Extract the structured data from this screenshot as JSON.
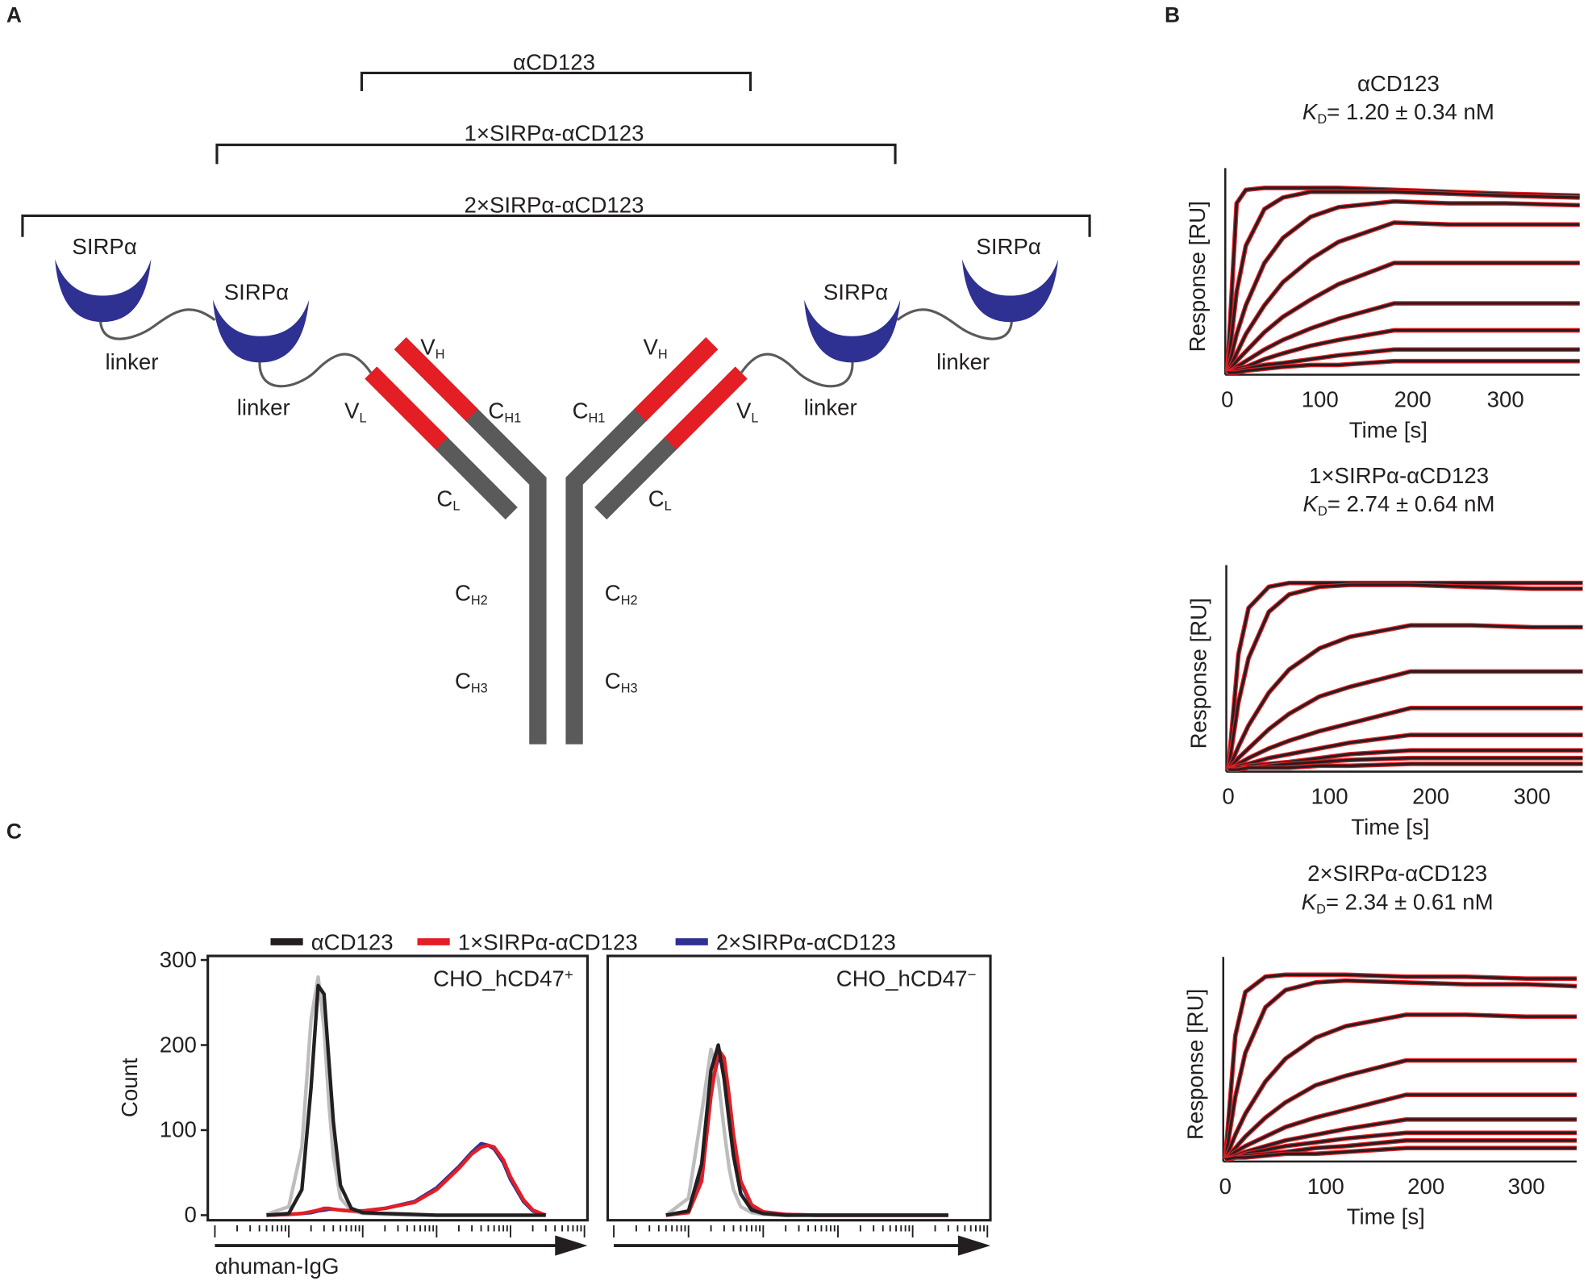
{
  "panel_labels": [
    "A",
    "B",
    "C"
  ],
  "diagram": {
    "brackets": [
      "αCD123",
      "1×SIRPα-αCD123",
      "2×SIRPα-αCD123"
    ],
    "domains": [
      "SIRPα",
      "SIRPα",
      "SIRPα",
      "SIRPα"
    ],
    "linkers": [
      "linker",
      "linker",
      "linker",
      "linker"
    ],
    "chains": [
      {
        "main": "V",
        "sub": "H"
      },
      {
        "main": "C",
        "sub": "H1"
      },
      {
        "main": "V",
        "sub": "L"
      },
      {
        "main": "C",
        "sub": "L"
      },
      {
        "main": "C",
        "sub": "H2"
      },
      {
        "main": "C",
        "sub": "H3"
      },
      {
        "main": "V",
        "sub": "H"
      },
      {
        "main": "C",
        "sub": "H1"
      },
      {
        "main": "V",
        "sub": "L"
      },
      {
        "main": "C",
        "sub": "L"
      },
      {
        "main": "C",
        "sub": "H2"
      },
      {
        "main": "C",
        "sub": "H3"
      }
    ]
  },
  "chart_data": [
    {
      "type": "line",
      "title": "αCD123",
      "kd": {
        "symbol": "K",
        "subscript": "D",
        "text": "= 1.20 ± 0.34 nM"
      },
      "xlabel": "Time [s]",
      "ylabel": "Response [RU]",
      "x": [
        0,
        10,
        20,
        40,
        60,
        90,
        120,
        180,
        240,
        300,
        380
      ],
      "xlim": [
        0,
        380
      ],
      "ylim": [
        0,
        100
      ],
      "xticks": [
        0,
        100,
        200,
        300
      ],
      "data_color": "#e31e24",
      "fit_color": "#231f20",
      "series": [
        {
          "values": [
            0,
            88,
            95,
            96,
            96,
            96,
            96,
            95,
            94,
            93,
            92
          ]
        },
        {
          "values": [
            0,
            42,
            66,
            85,
            91,
            94,
            94,
            94,
            93,
            92,
            91
          ]
        },
        {
          "values": [
            0,
            20,
            35,
            57,
            70,
            81,
            86,
            89,
            88,
            88,
            87
          ]
        },
        {
          "values": [
            0,
            10,
            20,
            35,
            47,
            59,
            68,
            78,
            77,
            77,
            77
          ]
        },
        {
          "values": [
            0,
            6,
            11,
            21,
            29,
            38,
            46,
            57,
            57,
            57,
            57
          ]
        },
        {
          "values": [
            0,
            3,
            6,
            12,
            17,
            23,
            28,
            36,
            36,
            36,
            36
          ]
        },
        {
          "values": [
            0,
            2,
            3,
            7,
            10,
            14,
            17,
            22,
            22,
            22,
            22
          ]
        },
        {
          "values": [
            0,
            1,
            2,
            4,
            5,
            7,
            9,
            12,
            12,
            12,
            12
          ]
        },
        {
          "values": [
            0,
            0,
            1,
            2,
            3,
            4,
            4,
            6,
            6,
            6,
            6
          ]
        }
      ]
    },
    {
      "type": "line",
      "title": "1×SIRPα-αCD123",
      "kd": {
        "symbol": "K",
        "subscript": "D",
        "text": "= 2.74 ± 0.64 nM"
      },
      "xlabel": "Time [s]",
      "ylabel": "Response [RU]",
      "x": [
        0,
        10,
        20,
        40,
        60,
        90,
        120,
        180,
        240,
        300,
        350
      ],
      "xlim": [
        0,
        350
      ],
      "ylim": [
        0,
        100
      ],
      "xticks": [
        0,
        100,
        200,
        300
      ],
      "data_color": "#e31e24",
      "fit_color": "#231f20",
      "series": [
        {
          "values": [
            0,
            60,
            84,
            95,
            97,
            97,
            97,
            97,
            97,
            97,
            97
          ]
        },
        {
          "values": [
            0,
            35,
            58,
            82,
            91,
            95,
            96,
            96,
            95,
            94,
            94
          ]
        },
        {
          "values": [
            0,
            12,
            23,
            40,
            52,
            63,
            69,
            75,
            75,
            74,
            74
          ]
        },
        {
          "values": [
            0,
            6,
            11,
            21,
            29,
            38,
            43,
            51,
            51,
            51,
            51
          ]
        },
        {
          "values": [
            0,
            3,
            6,
            11,
            15,
            20,
            24,
            32,
            32,
            32,
            32
          ]
        },
        {
          "values": [
            0,
            2,
            3,
            6,
            8,
            11,
            14,
            18,
            18,
            18,
            18
          ]
        },
        {
          "values": [
            0,
            1,
            2,
            3,
            4,
            6,
            8,
            10,
            10,
            10,
            10
          ]
        },
        {
          "values": [
            0,
            1,
            1,
            2,
            3,
            4,
            5,
            6,
            6,
            6,
            6
          ]
        },
        {
          "values": [
            0,
            0,
            1,
            1,
            1,
            2,
            2,
            3,
            3,
            3,
            3
          ]
        }
      ]
    },
    {
      "type": "line",
      "title": "2×SIRPα-αCD123",
      "kd": {
        "symbol": "K",
        "subscript": "D",
        "text": "= 2.34 ± 0.61 nM"
      },
      "xlabel": "Time [s]",
      "ylabel": "Response [RU]",
      "x": [
        0,
        10,
        20,
        40,
        60,
        90,
        120,
        180,
        240,
        300,
        350
      ],
      "xlim": [
        0,
        350
      ],
      "ylim": [
        0,
        100
      ],
      "xticks": [
        0,
        100,
        200,
        300
      ],
      "data_color": "#e31e24",
      "fit_color": "#231f20",
      "series": [
        {
          "values": [
            0,
            65,
            88,
            96,
            97,
            97,
            97,
            96,
            96,
            95,
            95
          ]
        },
        {
          "values": [
            0,
            33,
            56,
            80,
            89,
            93,
            94,
            93,
            92,
            92,
            91
          ]
        },
        {
          "values": [
            0,
            13,
            24,
            41,
            53,
            64,
            70,
            76,
            76,
            75,
            75
          ]
        },
        {
          "values": [
            0,
            6,
            12,
            22,
            30,
            39,
            44,
            52,
            52,
            52,
            52
          ]
        },
        {
          "values": [
            0,
            4,
            7,
            12,
            17,
            22,
            26,
            34,
            34,
            34,
            34
          ]
        },
        {
          "values": [
            0,
            2,
            4,
            7,
            10,
            13,
            16,
            21,
            21,
            21,
            21
          ]
        },
        {
          "values": [
            0,
            1,
            3,
            5,
            7,
            9,
            11,
            14,
            14,
            14,
            14
          ]
        },
        {
          "values": [
            0,
            1,
            2,
            3,
            4,
            6,
            7,
            10,
            10,
            10,
            10
          ]
        },
        {
          "values": [
            0,
            1,
            1,
            2,
            3,
            3,
            4,
            6,
            6,
            6,
            6
          ]
        }
      ]
    },
    {
      "type": "line",
      "log_x": true,
      "legend": "top",
      "annotation": "CHO_hCD47",
      "annotation_sup": "+",
      "xlabel": "αhuman-IgG",
      "ylabel": "Count",
      "x": [
        5,
        10,
        15,
        20,
        25,
        30,
        35,
        40,
        50,
        70,
        100,
        200,
        500,
        1000,
        2000,
        3000,
        4000,
        5000,
        6000,
        8000,
        10000,
        15000,
        20000,
        30000
      ],
      "xlim": [
        1,
        100000
      ],
      "ylim": [
        0,
        300
      ],
      "yticks": [
        0,
        100,
        200,
        300
      ],
      "xticks": [
        1,
        2,
        3,
        4,
        5,
        6,
        7,
        8,
        9,
        10,
        20,
        30,
        40,
        50,
        60,
        70,
        80,
        90,
        100,
        200,
        300,
        400,
        500,
        600,
        700,
        800,
        900,
        1000,
        2000,
        3000,
        4000,
        5000,
        6000,
        7000,
        8000,
        9000,
        10000,
        20000,
        30000,
        40000,
        50000,
        60000,
        70000,
        80000,
        90000,
        100000
      ],
      "series": [
        {
          "name": "αCD123",
          "color": "#231f20",
          "values": [
            0,
            2,
            30,
            150,
            270,
            260,
            180,
            110,
            35,
            8,
            3,
            2,
            1,
            0,
            0,
            0,
            0,
            0,
            0,
            0,
            0,
            0,
            0,
            0
          ]
        },
        {
          "name": "1×SIRPα-αCD123",
          "color": "#e31e24",
          "values": [
            0,
            1,
            2,
            4,
            6,
            8,
            8,
            7,
            6,
            5,
            5,
            8,
            15,
            30,
            55,
            72,
            80,
            82,
            80,
            65,
            45,
            18,
            6,
            0
          ]
        },
        {
          "name": "2×SIRPα-αCD123",
          "color": "#2e3192",
          "values": [
            0,
            1,
            2,
            3,
            5,
            6,
            7,
            7,
            6,
            5,
            5,
            8,
            16,
            32,
            57,
            74,
            84,
            82,
            78,
            62,
            42,
            16,
            5,
            0
          ]
        },
        {
          "color": "#bdbdbd",
          "values": [
            1,
            10,
            80,
            230,
            280,
            220,
            130,
            70,
            20,
            5,
            2,
            1,
            0,
            0,
            0,
            0,
            0,
            0,
            0,
            0,
            0,
            0,
            0,
            0
          ]
        }
      ]
    },
    {
      "type": "line",
      "log_x": true,
      "annotation": "CHO_hCD47",
      "annotation_sup": "−",
      "x": [
        5,
        10,
        15,
        20,
        25,
        30,
        35,
        40,
        50,
        70,
        100,
        200,
        500,
        1000,
        2000,
        3000,
        4000,
        5000,
        6000,
        8000,
        10000,
        15000,
        20000,
        30000
      ],
      "xlim": [
        1,
        100000
      ],
      "ylim": [
        0,
        300
      ],
      "xticks": [
        1,
        2,
        3,
        4,
        5,
        6,
        7,
        8,
        9,
        10,
        20,
        30,
        40,
        50,
        60,
        70,
        80,
        90,
        100,
        200,
        300,
        400,
        500,
        600,
        700,
        800,
        900,
        1000,
        2000,
        3000,
        4000,
        5000,
        6000,
        7000,
        8000,
        9000,
        10000,
        20000,
        30000,
        40000,
        50000,
        60000,
        70000,
        80000,
        90000,
        100000
      ],
      "series": [
        {
          "color": "#231f20",
          "values": [
            0,
            5,
            60,
            170,
            200,
            160,
            110,
            70,
            25,
            6,
            2,
            0,
            0,
            0,
            0,
            0,
            0,
            0,
            0,
            0,
            0,
            0,
            0,
            0
          ]
        },
        {
          "color": "#e31e24",
          "values": [
            0,
            3,
            40,
            140,
            195,
            185,
            140,
            95,
            40,
            12,
            4,
            1,
            0,
            0,
            0,
            0,
            0,
            0,
            0,
            0,
            0,
            0,
            0,
            0
          ]
        },
        {
          "color": "#2e3192",
          "values": [
            0,
            4,
            45,
            150,
            185,
            175,
            135,
            90,
            38,
            11,
            3,
            1,
            0,
            0,
            0,
            0,
            0,
            0,
            0,
            0,
            0,
            0,
            0,
            0
          ]
        },
        {
          "color": "#bdbdbd",
          "values": [
            0,
            20,
            120,
            195,
            160,
            100,
            55,
            30,
            10,
            3,
            1,
            0,
            0,
            0,
            0,
            0,
            0,
            0,
            0,
            0,
            0,
            0,
            0,
            0
          ]
        }
      ]
    }
  ]
}
